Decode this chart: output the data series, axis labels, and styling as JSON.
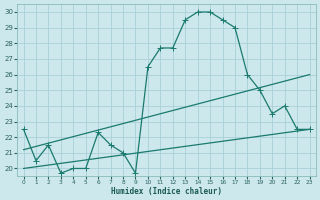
{
  "xlabel": "Humidex (Indice chaleur)",
  "bg_color": "#cce8ec",
  "grid_color": "#aad0d8",
  "line_color": "#1a7a6e",
  "xlim": [
    -0.5,
    23.5
  ],
  "ylim": [
    19.5,
    30.5
  ],
  "xticks": [
    0,
    1,
    2,
    3,
    4,
    5,
    6,
    7,
    8,
    9,
    10,
    11,
    12,
    13,
    14,
    15,
    16,
    17,
    18,
    19,
    20,
    21,
    22,
    23
  ],
  "yticks": [
    20,
    21,
    22,
    23,
    24,
    25,
    26,
    27,
    28,
    29,
    30
  ],
  "line1_x": [
    0,
    1,
    2,
    3,
    4,
    5,
    6,
    7,
    8,
    9,
    10,
    11,
    12,
    13,
    14,
    15,
    16,
    17,
    18,
    19,
    20,
    21,
    22,
    23
  ],
  "line1_y": [
    22.5,
    20.5,
    21.5,
    19.7,
    20.0,
    20.0,
    22.3,
    21.5,
    21.0,
    19.7,
    26.5,
    27.7,
    27.7,
    29.5,
    30.0,
    30.0,
    29.5,
    29.0,
    26.0,
    25.0,
    23.5,
    24.0,
    22.5,
    22.5
  ],
  "line2_x": [
    0,
    23
  ],
  "line2_y": [
    21.2,
    26.0
  ],
  "line3_x": [
    0,
    23
  ],
  "line3_y": [
    20.0,
    22.5
  ]
}
